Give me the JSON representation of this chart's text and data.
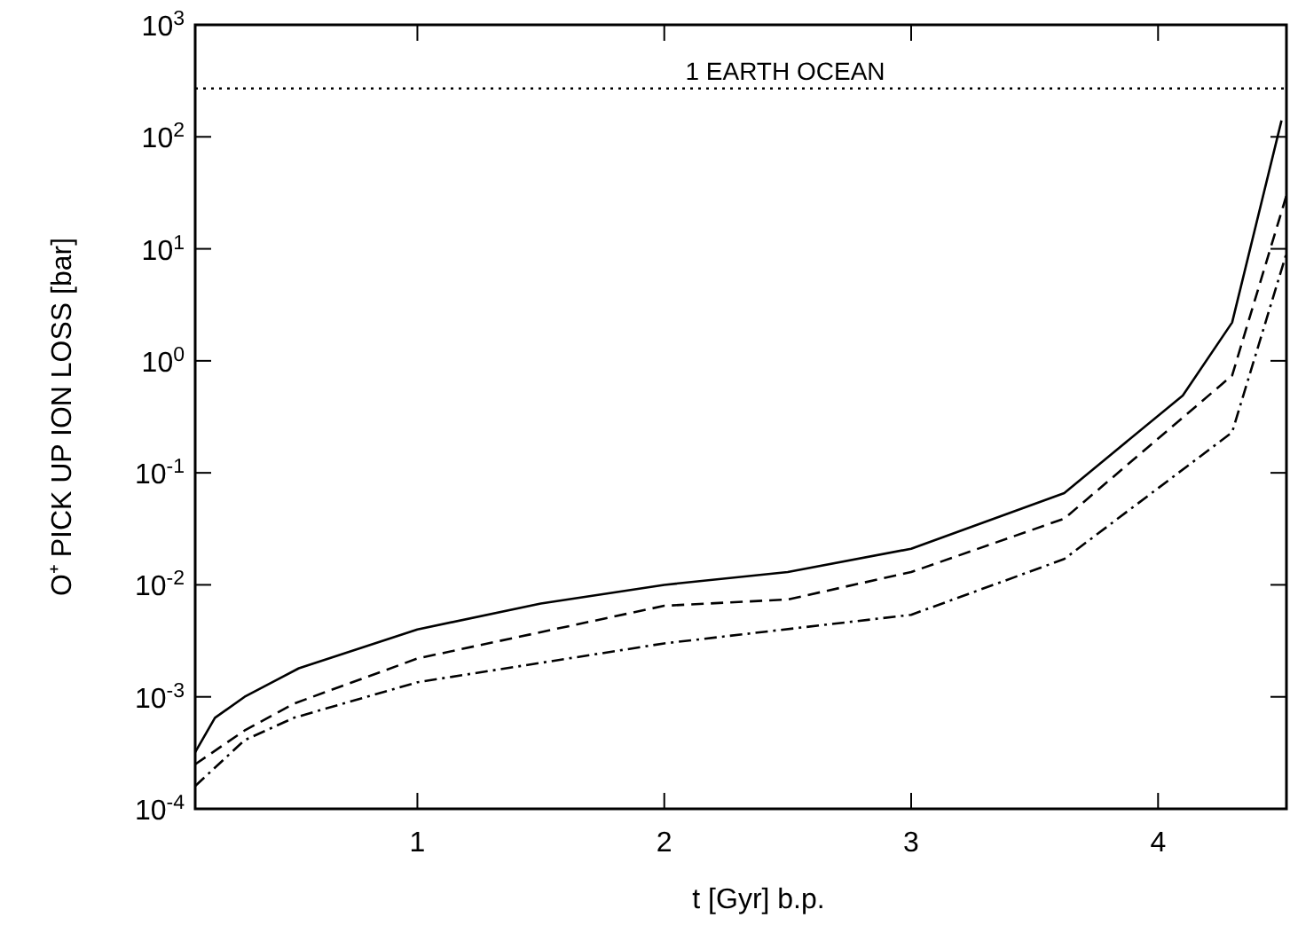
{
  "chart_data": {
    "type": "line",
    "xlabel": "t [Gyr] b.p.",
    "ylabel": "O⁺ PICK UP ION LOSS [bar]",
    "log": "y",
    "xlim": [
      0.1,
      4.52
    ],
    "xticks": [
      1,
      2,
      3,
      4
    ],
    "ylim": [
      0.0001,
      1000
    ],
    "yticks": [
      {
        "value": 0.0001,
        "label": "10$^{-4}$"
      },
      {
        "value": 0.001,
        "label": "10$^{-3}$"
      },
      {
        "value": 0.01,
        "label": "10$^{-2}$"
      },
      {
        "value": 0.1,
        "label": "10$^{-1}$"
      },
      {
        "value": 1,
        "label": "10$^{0}$"
      },
      {
        "value": 10,
        "label": "10$^{1}$"
      },
      {
        "value": 100,
        "label": "10$^{2}$"
      },
      {
        "value": 1000,
        "label": "10$^{3}$"
      }
    ],
    "grid": false,
    "marker": "none",
    "series": [
      {
        "color": "#000000",
        "line_style": "solid",
        "x": [
          0.1,
          0.18,
          0.3,
          0.52,
          1,
          1.5,
          2,
          2.5,
          3,
          3.62,
          4.1,
          4.3,
          4.5
        ],
        "values": [
          0.00032,
          0.00065,
          0.001,
          0.0018,
          0.004,
          0.0068,
          0.01,
          0.013,
          0.021,
          0.066,
          0.49,
          2.2,
          140
        ]
      },
      {
        "color": "#000000",
        "line_style": "dashed",
        "x": [
          0.1,
          0.3,
          0.5,
          1,
          2,
          2.5,
          3,
          3.62,
          4.3,
          4.52
        ],
        "values": [
          0.00025,
          0.0005,
          0.00087,
          0.0022,
          0.0065,
          0.0074,
          0.013,
          0.039,
          0.74,
          30
        ]
      },
      {
        "color": "#000000",
        "line_style": "dashdot",
        "x": [
          0.1,
          0.3,
          0.5,
          1,
          2,
          3,
          3.62,
          4.3,
          4.52
        ],
        "values": [
          0.00016,
          0.00041,
          0.00065,
          0.00135,
          0.003,
          0.0054,
          0.017,
          0.23,
          9.1
        ]
      }
    ],
    "ref_lines": [
      {
        "axis": "y",
        "value": 270,
        "label": "1 EARTH OCEAN",
        "color": "#000000",
        "line_style": "dotted"
      }
    ]
  }
}
